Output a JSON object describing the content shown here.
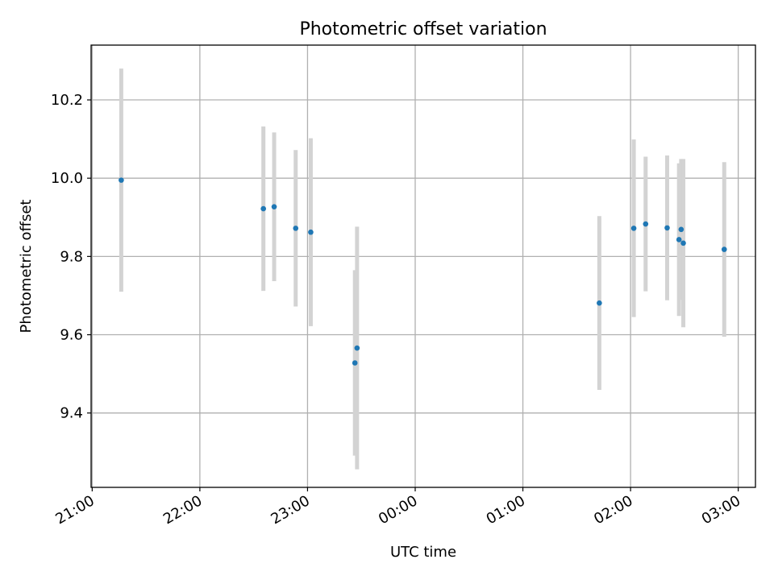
{
  "chart_data": {
    "type": "scatter",
    "title": "Photometric offset variation",
    "xlabel": "UTC time",
    "ylabel": "Photometric offset",
    "x_unit": "hours (UTC, continuing past midnight)",
    "x_ticks": [
      {
        "value": 21,
        "label": "21:00"
      },
      {
        "value": 22,
        "label": "22:00"
      },
      {
        "value": 23,
        "label": "23:00"
      },
      {
        "value": 24,
        "label": "00:00"
      },
      {
        "value": 25,
        "label": "01:00"
      },
      {
        "value": 26,
        "label": "02:00"
      },
      {
        "value": 27,
        "label": "03:00"
      }
    ],
    "y_ticks": [
      9.4,
      9.6,
      9.8,
      10.0,
      10.2
    ],
    "xlim": [
      20.99,
      27.16
    ],
    "ylim": [
      9.21,
      10.34
    ],
    "grid": true,
    "marker_color": "#1f77b4",
    "errorbar_color": "#d3d3d3",
    "points": [
      {
        "x": 21.27,
        "y": 9.995,
        "err": 0.285
      },
      {
        "x": 22.59,
        "y": 9.922,
        "err": 0.21
      },
      {
        "x": 22.69,
        "y": 9.927,
        "err": 0.19
      },
      {
        "x": 22.89,
        "y": 9.872,
        "err": 0.2
      },
      {
        "x": 23.03,
        "y": 9.862,
        "err": 0.24
      },
      {
        "x": 23.44,
        "y": 9.528,
        "err": 0.237
      },
      {
        "x": 23.46,
        "y": 9.566,
        "err": 0.31
      },
      {
        "x": 25.71,
        "y": 9.681,
        "err": 0.222
      },
      {
        "x": 26.03,
        "y": 9.872,
        "err": 0.227
      },
      {
        "x": 26.14,
        "y": 9.883,
        "err": 0.172
      },
      {
        "x": 26.34,
        "y": 9.873,
        "err": 0.185
      },
      {
        "x": 26.45,
        "y": 9.843,
        "err": 0.195
      },
      {
        "x": 26.47,
        "y": 9.869,
        "err": 0.18
      },
      {
        "x": 26.49,
        "y": 9.834,
        "err": 0.215
      },
      {
        "x": 26.87,
        "y": 9.818,
        "err": 0.223
      }
    ]
  }
}
